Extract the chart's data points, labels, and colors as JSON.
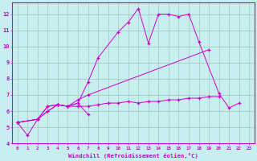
{
  "xlabel": "Windchill (Refroidissement éolien,°C)",
  "background_color": "#c8eef0",
  "grid_color": "#a0c8c0",
  "line_color": "#cc00cc",
  "xlim": [
    -0.5,
    23.5
  ],
  "ylim": [
    4,
    12.7
  ],
  "xticks": [
    0,
    1,
    2,
    3,
    4,
    5,
    6,
    7,
    8,
    9,
    10,
    11,
    12,
    13,
    14,
    15,
    16,
    17,
    18,
    19,
    20,
    21,
    22,
    23
  ],
  "yticks": [
    4,
    5,
    6,
    7,
    8,
    9,
    10,
    11,
    12
  ],
  "series": [
    [
      [
        0,
        5.3
      ],
      [
        1,
        4.5
      ],
      [
        2,
        5.5
      ],
      [
        3,
        6.3
      ],
      [
        4,
        6.4
      ],
      [
        5,
        6.3
      ],
      [
        6,
        6.5
      ],
      [
        7,
        7.8
      ],
      [
        8,
        9.3
      ],
      [
        10,
        10.9
      ],
      [
        11,
        11.5
      ],
      [
        12,
        12.35
      ],
      [
        13,
        10.2
      ],
      [
        14,
        12.0
      ],
      [
        15,
        12.0
      ],
      [
        16,
        11.85
      ],
      [
        17,
        12.0
      ],
      [
        18,
        10.3
      ],
      [
        20,
        7.1
      ],
      [
        21,
        6.2
      ],
      [
        22,
        6.5
      ]
    ],
    [
      [
        0,
        5.3
      ],
      [
        2,
        5.5
      ],
      [
        3,
        6.3
      ],
      [
        4,
        6.4
      ],
      [
        5,
        6.3
      ],
      [
        6,
        6.5
      ],
      [
        7,
        5.8
      ]
    ],
    [
      [
        0,
        5.3
      ],
      [
        2,
        5.5
      ],
      [
        3,
        6.0
      ],
      [
        4,
        6.4
      ],
      [
        5,
        6.3
      ],
      [
        6,
        6.7
      ],
      [
        7,
        7.0
      ],
      [
        19,
        9.8
      ]
    ],
    [
      [
        0,
        5.3
      ],
      [
        2,
        5.5
      ],
      [
        3,
        6.0
      ],
      [
        4,
        6.4
      ],
      [
        5,
        6.3
      ],
      [
        6,
        6.3
      ],
      [
        7,
        6.3
      ],
      [
        8,
        6.4
      ],
      [
        9,
        6.5
      ],
      [
        10,
        6.5
      ],
      [
        11,
        6.6
      ],
      [
        12,
        6.5
      ],
      [
        13,
        6.6
      ],
      [
        14,
        6.6
      ],
      [
        15,
        6.7
      ],
      [
        16,
        6.7
      ],
      [
        17,
        6.8
      ],
      [
        18,
        6.8
      ],
      [
        19,
        6.9
      ],
      [
        20,
        6.9
      ]
    ]
  ]
}
